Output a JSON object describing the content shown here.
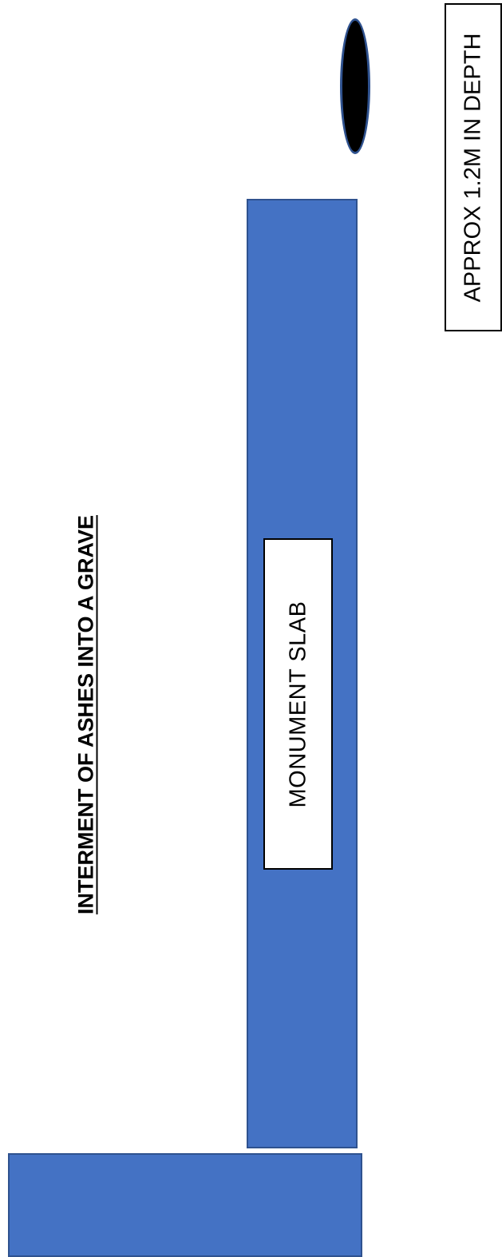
{
  "title": "INTERMENT OF ASHES INTO A GRAVE",
  "slab": {
    "label": "MONUMENT SLAB"
  },
  "depth_note": "APPROX 1.2M IN DEPTH",
  "colors": {
    "slab_fill": "#4472c4",
    "slab_border": "#2f528f",
    "urn_fill": "#000000",
    "text": "#000000",
    "background": "#ffffff"
  }
}
